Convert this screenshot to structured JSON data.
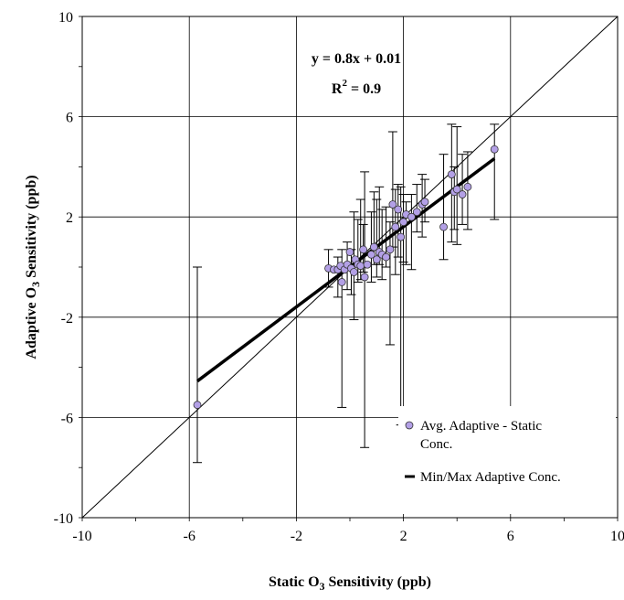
{
  "chart_data": {
    "type": "scatter",
    "xlabel": "Static O",
    "xlabel_sub": "3",
    "xlabel_tail": " Sensitivity (ppb)",
    "ylabel": "Adaptive O",
    "ylabel_sub": "3",
    "ylabel_tail": " Sensitivity (ppb)",
    "xlim": [
      -10,
      10
    ],
    "ylim": [
      -10,
      10
    ],
    "xticks": [
      -10,
      -6,
      -2,
      2,
      6,
      10
    ],
    "yticks": [
      -10,
      -6,
      -2,
      2,
      6,
      10
    ],
    "grid": true,
    "legend_position": "bottom-right",
    "annotations": {
      "equation": "y = 0.8x + 0.01",
      "r2_prefix": "R",
      "r2_sup": "2",
      "r2_suffix": " = 0.9"
    },
    "identity_line": [
      [
        -10,
        -10
      ],
      [
        10,
        10
      ]
    ],
    "regression": {
      "slope": 0.8,
      "intercept": 0.01,
      "x_range": [
        -5.7,
        5.4
      ]
    },
    "series": [
      {
        "name": "Avg. Adaptive - Static Conc.",
        "color": "#b3a0e6",
        "points": [
          [
            -5.7,
            -5.5
          ],
          [
            -0.8,
            -0.05
          ],
          [
            -0.6,
            -0.1
          ],
          [
            -0.45,
            -0.1
          ],
          [
            -0.35,
            0.05
          ],
          [
            -0.3,
            -0.6
          ],
          [
            -0.2,
            -0.1
          ],
          [
            -0.1,
            0.1
          ],
          [
            0.0,
            0.6
          ],
          [
            0.05,
            -0.05
          ],
          [
            0.15,
            -0.2
          ],
          [
            0.2,
            0.3
          ],
          [
            0.3,
            0.1
          ],
          [
            0.4,
            0.05
          ],
          [
            0.5,
            0.7
          ],
          [
            0.55,
            -0.4
          ],
          [
            0.65,
            0.1
          ],
          [
            0.8,
            0.5
          ],
          [
            0.9,
            0.8
          ],
          [
            1.0,
            0.3
          ],
          [
            1.1,
            0.6
          ],
          [
            1.2,
            0.5
          ],
          [
            1.35,
            0.4
          ],
          [
            1.5,
            0.7
          ],
          [
            1.6,
            2.5
          ],
          [
            1.7,
            1.6
          ],
          [
            1.8,
            2.3
          ],
          [
            1.9,
            1.2
          ],
          [
            2.0,
            1.8
          ],
          [
            2.1,
            2.1
          ],
          [
            2.3,
            2.0
          ],
          [
            2.5,
            2.2
          ],
          [
            2.7,
            2.5
          ],
          [
            2.8,
            2.6
          ],
          [
            3.5,
            1.6
          ],
          [
            3.8,
            3.7
          ],
          [
            3.9,
            3.0
          ],
          [
            4.0,
            3.1
          ],
          [
            4.2,
            2.9
          ],
          [
            4.4,
            3.2
          ],
          [
            5.4,
            4.7
          ]
        ]
      },
      {
        "name": "Min/Max Adaptive Conc.",
        "color": "#000000",
        "errorbars": [
          [
            -5.7,
            -7.8,
            0.0
          ],
          [
            -0.8,
            -0.8,
            0.7
          ],
          [
            -0.45,
            -1.2,
            0.4
          ],
          [
            -0.3,
            -5.6,
            0.7
          ],
          [
            -0.1,
            -0.9,
            1.0
          ],
          [
            0.05,
            -1.1,
            0.7
          ],
          [
            0.15,
            -2.1,
            2.2
          ],
          [
            0.3,
            -0.6,
            1.9
          ],
          [
            0.4,
            -0.5,
            2.7
          ],
          [
            0.5,
            -0.2,
            1.7
          ],
          [
            0.55,
            -7.2,
            3.8
          ],
          [
            0.8,
            -0.6,
            2.2
          ],
          [
            0.9,
            0.1,
            3.0
          ],
          [
            1.0,
            -0.4,
            2.7
          ],
          [
            1.1,
            0.1,
            3.2
          ],
          [
            1.2,
            -0.5,
            2.3
          ],
          [
            1.35,
            0.0,
            2.4
          ],
          [
            1.5,
            -3.1,
            1.8
          ],
          [
            1.6,
            0.8,
            5.4
          ],
          [
            1.7,
            -0.3,
            3.1
          ],
          [
            1.8,
            0.4,
            3.3
          ],
          [
            1.9,
            -6.3,
            3.2
          ],
          [
            2.0,
            0.2,
            2.9
          ],
          [
            2.1,
            0.1,
            2.6
          ],
          [
            2.3,
            -0.1,
            2.9
          ],
          [
            2.5,
            1.4,
            3.3
          ],
          [
            2.7,
            1.2,
            3.7
          ],
          [
            2.8,
            1.8,
            3.5
          ],
          [
            3.5,
            0.3,
            4.5
          ],
          [
            3.8,
            1.0,
            5.7
          ],
          [
            3.9,
            1.5,
            4.0
          ],
          [
            4.0,
            0.9,
            5.6
          ],
          [
            4.2,
            1.7,
            4.5
          ],
          [
            4.4,
            1.5,
            4.6
          ],
          [
            5.4,
            1.9,
            5.7
          ]
        ]
      }
    ]
  }
}
